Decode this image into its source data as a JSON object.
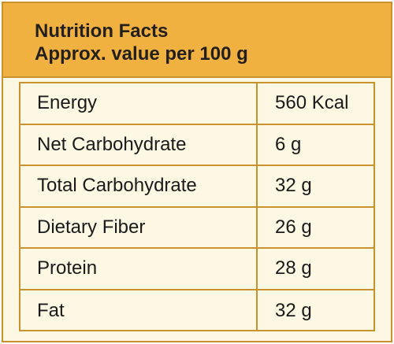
{
  "header": {
    "title": "Nutrition Facts",
    "subtitle": "Approx. value per 100 g"
  },
  "colors": {
    "header_background": "#f0b141",
    "border": "#c9922e",
    "table_background": "#fdf8e3",
    "text": "#1a1a1a"
  },
  "rows": [
    {
      "name": "Energy",
      "value": "560 Kcal"
    },
    {
      "name": "Net Carbohydrate",
      "value": "6 g"
    },
    {
      "name": "Total Carbohydrate",
      "value": "32 g"
    },
    {
      "name": "Dietary Fiber",
      "value": "26 g"
    },
    {
      "name": "Protein",
      "value": "28 g"
    },
    {
      "name": "Fat",
      "value": "32 g"
    }
  ]
}
